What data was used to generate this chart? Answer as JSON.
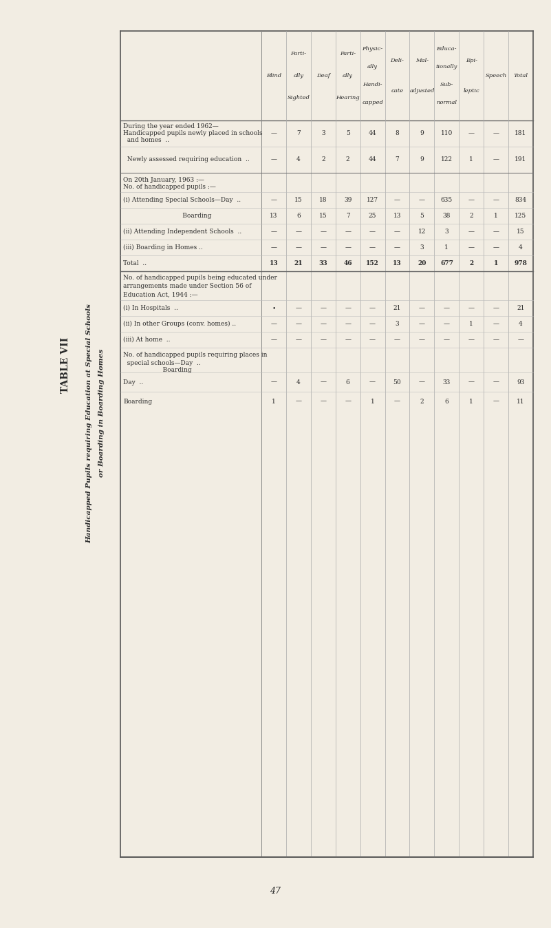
{
  "title1": "TABLE VII",
  "title2": "Handicapped Pupils requiring Education at Special Schools",
  "title3": "or Boarding in Boarding Homes",
  "bg_color": "#f2ede3",
  "col_headers": [
    "Blind",
    "Parti-\nally\nSighted",
    "Deaf",
    "Parti-\nally\nHearing",
    "Physic-\nally\nHandi-\ncapped",
    "Deli-\ncate",
    "Mal-\nadjusted",
    "Educa-\ntionally\nSub-\nnormal",
    "Epi-\nleptic",
    "Speech",
    "Total"
  ],
  "section1_header_lines": [
    "During the year ended 1962—",
    "Handicapped pupils newly placed in schools",
    "  and homes  ..",
    "  Newly assessed requiring education  .."
  ],
  "section1_rows": [
    {
      "vals": [
        "—",
        "7",
        "3",
        "5",
        "44",
        "8",
        "9",
        "110",
        "—",
        "—",
        "181"
      ]
    },
    {
      "vals": [
        "—",
        "4",
        "2",
        "2",
        "44",
        "7",
        "9",
        "122",
        "1",
        "—",
        "191"
      ]
    }
  ],
  "section2_header_lines": [
    "On 20th January, 1963 :—",
    "No. of handicapped pupils :—"
  ],
  "section2_rows": [
    {
      "label": "(i) Attending Special Schools—Day  ..",
      "vals": [
        "—",
        "15",
        "18",
        "39",
        "127",
        "—",
        "—",
        "635",
        "—",
        "—",
        "834"
      ]
    },
    {
      "label": "                              Boarding",
      "vals": [
        "13",
        "6",
        "15",
        "7",
        "25",
        "13",
        "5",
        "38",
        "2",
        "1",
        "125"
      ]
    },
    {
      "label": "(ii) Attending Independent Schools  ..",
      "vals": [
        "—",
        "—",
        "—",
        "—",
        "—",
        "—",
        "12",
        "3",
        "—",
        "—",
        "15"
      ]
    },
    {
      "label": "(iii) Boarding in Homes ..",
      "vals": [
        "—",
        "—",
        "—",
        "—",
        "—",
        "—",
        "3",
        "1",
        "—",
        "—",
        "4"
      ]
    },
    {
      "label": "Total  ..",
      "vals": [
        "13",
        "21",
        "33",
        "46",
        "152",
        "13",
        "20",
        "677",
        "2",
        "1",
        "978"
      ],
      "bold": true
    }
  ],
  "section3_header_lines": [
    "No. of handicapped pupils being educated under",
    "arrangements made under Section 56 of",
    "Education Act, 1944 :—"
  ],
  "section3_rows": [
    {
      "label": "(i) In Hospitals  ..",
      "vals": [
        "•",
        "—",
        "—",
        "—",
        "—",
        "21",
        "—",
        "—",
        "—",
        "—",
        "21"
      ]
    },
    {
      "label": "(ii) In other Groups (conv. homes) ..",
      "vals": [
        "—",
        "—",
        "—",
        "—",
        "—",
        "3",
        "—",
        "—",
        "1",
        "—",
        "4"
      ]
    },
    {
      "label": "(iii) At home  ..",
      "vals": [
        "—",
        "—",
        "—",
        "—",
        "—",
        "—",
        "—",
        "—",
        "—",
        "—",
        "—"
      ]
    }
  ],
  "section4_header_lines": [
    "No. of handicapped pupils requiring places in",
    "  special schools—Day  ..",
    "                    Boarding"
  ],
  "section4_rows": [
    {
      "label": "Day  ..",
      "vals": [
        "—",
        "4",
        "—",
        "6",
        "—",
        "50",
        "—",
        "33",
        "—",
        "—",
        "93"
      ]
    },
    {
      "label": "Boarding",
      "vals": [
        "1",
        "—",
        "—",
        "—",
        "1",
        "—",
        "2",
        "6",
        "1",
        "—",
        "11"
      ]
    }
  ],
  "page_number": "47"
}
